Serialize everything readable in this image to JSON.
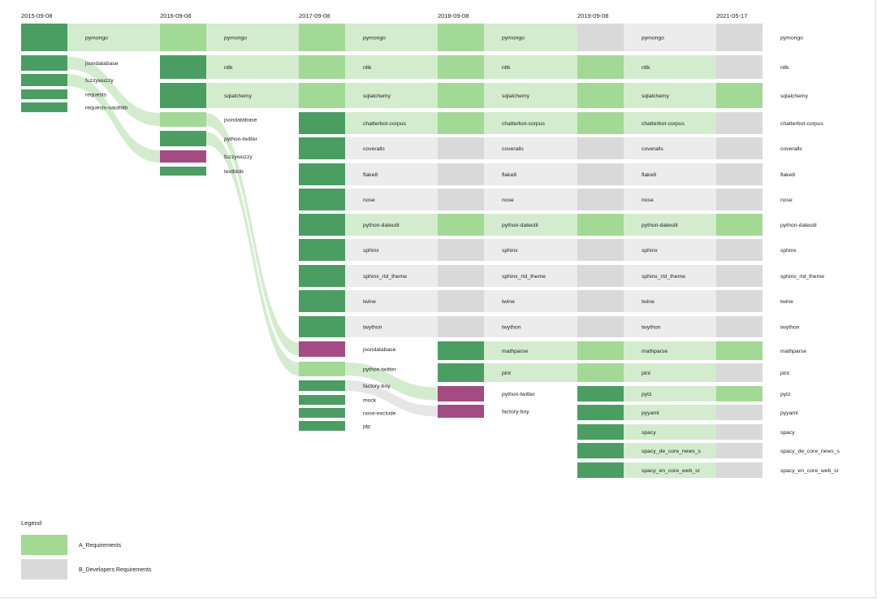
{
  "colors": {
    "dark": "#4a9e62",
    "light": "#a2d995",
    "red": "#a34b82",
    "grey": "#d9d9d9",
    "band_green": "#d3ecce",
    "band_grey": "#ececec",
    "flow_green": "#d3ecce",
    "flow_grey": "#e6e6e6"
  },
  "legend": {
    "title": "Legend",
    "items": [
      {
        "label": "A_Requirements",
        "color": "light"
      },
      {
        "label": "B_Developers Requirements",
        "color": "grey"
      }
    ]
  },
  "columns": [
    {
      "date": "2015-09-08",
      "items": [
        {
          "label": "pymongo",
          "c": "dark",
          "band": "band_green"
        },
        {
          "label": "jsondatabase",
          "c": "dark"
        },
        {
          "label": "fuzzywuzzy",
          "c": "dark"
        },
        {
          "label": "requests",
          "c": "dark"
        },
        {
          "label": "requests-oauthlib",
          "c": "dark"
        }
      ]
    },
    {
      "date": "2016-09-08",
      "items": [
        {
          "label": "pymongo",
          "c": "light",
          "band": "band_green"
        },
        {
          "label": "nltk",
          "c": "dark",
          "band": "band_green"
        },
        {
          "label": "sqlalchemy",
          "c": "dark",
          "band": "band_green"
        },
        {
          "label": "jsondatabase",
          "c": "light"
        },
        {
          "label": "python-twitter",
          "c": "dark"
        },
        {
          "label": "fuzzywuzzy",
          "c": "red"
        },
        {
          "label": "textblob",
          "c": "dark"
        }
      ]
    },
    {
      "date": "2017-09-08",
      "items": [
        {
          "label": "pymongo",
          "c": "light",
          "band": "band_green"
        },
        {
          "label": "nltk",
          "c": "light",
          "band": "band_green"
        },
        {
          "label": "sqlalchemy",
          "c": "light",
          "band": "band_green"
        },
        {
          "label": "chatterbot-corpus",
          "c": "dark",
          "band": "band_green"
        },
        {
          "label": "coveralls",
          "c": "dark",
          "band": "band_grey"
        },
        {
          "label": "flake8",
          "c": "dark",
          "band": "band_grey"
        },
        {
          "label": "nose",
          "c": "dark",
          "band": "band_grey"
        },
        {
          "label": "python-dateutil",
          "c": "dark",
          "band": "band_green"
        },
        {
          "label": "sphinx",
          "c": "dark",
          "band": "band_grey"
        },
        {
          "label": "sphinx_rtd_theme",
          "c": "dark",
          "band": "band_grey"
        },
        {
          "label": "twine",
          "c": "dark",
          "band": "band_grey"
        },
        {
          "label": "twython",
          "c": "dark",
          "band": "band_grey"
        },
        {
          "label": "jsondatabase",
          "c": "red"
        },
        {
          "label": "python-twitter",
          "c": "light"
        },
        {
          "label": "factory-boy",
          "c": "dark"
        },
        {
          "label": "mock",
          "c": "dark"
        },
        {
          "label": "nose-exclude",
          "c": "dark"
        },
        {
          "label": "pip",
          "c": "dark"
        }
      ]
    },
    {
      "date": "2018-09-08",
      "items": [
        {
          "label": "pymongo",
          "c": "light",
          "band": "band_green"
        },
        {
          "label": "nltk",
          "c": "light",
          "band": "band_green"
        },
        {
          "label": "sqlalchemy",
          "c": "light",
          "band": "band_green"
        },
        {
          "label": "chatterbot-corpus",
          "c": "light",
          "band": "band_green"
        },
        {
          "label": "coveralls",
          "c": "grey",
          "band": "band_grey"
        },
        {
          "label": "flake8",
          "c": "grey",
          "band": "band_grey"
        },
        {
          "label": "nose",
          "c": "grey",
          "band": "band_grey"
        },
        {
          "label": "python-dateutil",
          "c": "light",
          "band": "band_green"
        },
        {
          "label": "sphinx",
          "c": "grey",
          "band": "band_grey"
        },
        {
          "label": "sphinx_rtd_theme",
          "c": "grey",
          "band": "band_grey"
        },
        {
          "label": "twine",
          "c": "grey",
          "band": "band_grey"
        },
        {
          "label": "twython",
          "c": "grey",
          "band": "band_grey"
        },
        {
          "label": "mathparse",
          "c": "dark",
          "band": "band_green"
        },
        {
          "label": "pint",
          "c": "dark",
          "band": "band_green"
        },
        {
          "label": "python-twitter",
          "c": "red"
        },
        {
          "label": "factory-boy",
          "c": "red"
        }
      ]
    },
    {
      "date": "2019-09-08",
      "items": [
        {
          "label": "pymongo",
          "c": "grey",
          "band": "band_grey"
        },
        {
          "label": "nltk",
          "c": "light",
          "band": "band_green"
        },
        {
          "label": "sqlalchemy",
          "c": "light",
          "band": "band_green"
        },
        {
          "label": "chatterbot-corpus",
          "c": "light",
          "band": "band_green"
        },
        {
          "label": "coveralls",
          "c": "grey",
          "band": "band_grey"
        },
        {
          "label": "flake8",
          "c": "grey",
          "band": "band_grey"
        },
        {
          "label": "nose",
          "c": "grey",
          "band": "band_grey"
        },
        {
          "label": "python-dateutil",
          "c": "light",
          "band": "band_green"
        },
        {
          "label": "sphinx",
          "c": "grey",
          "band": "band_grey"
        },
        {
          "label": "sphinx_rtd_theme",
          "c": "grey",
          "band": "band_grey"
        },
        {
          "label": "twine",
          "c": "grey",
          "band": "band_grey"
        },
        {
          "label": "twython",
          "c": "grey",
          "band": "band_grey"
        },
        {
          "label": "mathparse",
          "c": "light",
          "band": "band_green"
        },
        {
          "label": "pint",
          "c": "light",
          "band": "band_green"
        },
        {
          "label": "pytz",
          "c": "dark",
          "band": "band_green"
        },
        {
          "label": "pyyaml",
          "c": "dark",
          "band": "band_green"
        },
        {
          "label": "spacy",
          "c": "dark",
          "band": "band_green"
        },
        {
          "label": "spacy_de_core_news_s",
          "c": "dark",
          "band": "band_green"
        },
        {
          "label": "spacy_en_core_web_sr",
          "c": "dark",
          "band": "band_green"
        }
      ]
    },
    {
      "date": "2021-05-17",
      "items": [
        {
          "label": "pymongo",
          "c": "grey"
        },
        {
          "label": "nltk",
          "c": "grey"
        },
        {
          "label": "sqlalchemy",
          "c": "light"
        },
        {
          "label": "chatterbot-corpus",
          "c": "grey"
        },
        {
          "label": "coveralls",
          "c": "grey"
        },
        {
          "label": "flake8",
          "c": "grey"
        },
        {
          "label": "nose",
          "c": "grey"
        },
        {
          "label": "python-dateutil",
          "c": "light"
        },
        {
          "label": "sphinx",
          "c": "grey"
        },
        {
          "label": "sphinx_rtd_theme",
          "c": "grey"
        },
        {
          "label": "twine",
          "c": "grey"
        },
        {
          "label": "twython",
          "c": "grey"
        },
        {
          "label": "mathparse",
          "c": "light"
        },
        {
          "label": "pint",
          "c": "grey"
        },
        {
          "label": "pytz",
          "c": "light"
        },
        {
          "label": "pyyaml",
          "c": "grey"
        },
        {
          "label": "spacy",
          "c": "grey"
        },
        {
          "label": "spacy_de_core_news_s",
          "c": "grey"
        },
        {
          "label": "spacy_en_core_web_sr",
          "c": "grey"
        }
      ]
    }
  ],
  "flows": [
    {
      "from": [
        0,
        0
      ],
      "to": [
        1,
        0
      ],
      "c": "flow_green"
    },
    {
      "from": [
        0,
        1
      ],
      "to": [
        1,
        3
      ],
      "c": "flow_green"
    },
    {
      "from": [
        0,
        2
      ],
      "to": [
        1,
        5
      ],
      "c": "flow_green"
    },
    {
      "from": [
        1,
        3
      ],
      "to": [
        2,
        12
      ],
      "c": "flow_green"
    },
    {
      "from": [
        1,
        4
      ],
      "to": [
        2,
        13
      ],
      "c": "flow_green"
    },
    {
      "from": [
        2,
        13
      ],
      "to": [
        3,
        14
      ],
      "c": "flow_green"
    },
    {
      "from": [
        2,
        14
      ],
      "to": [
        3,
        15
      ],
      "c": "flow_grey"
    }
  ]
}
